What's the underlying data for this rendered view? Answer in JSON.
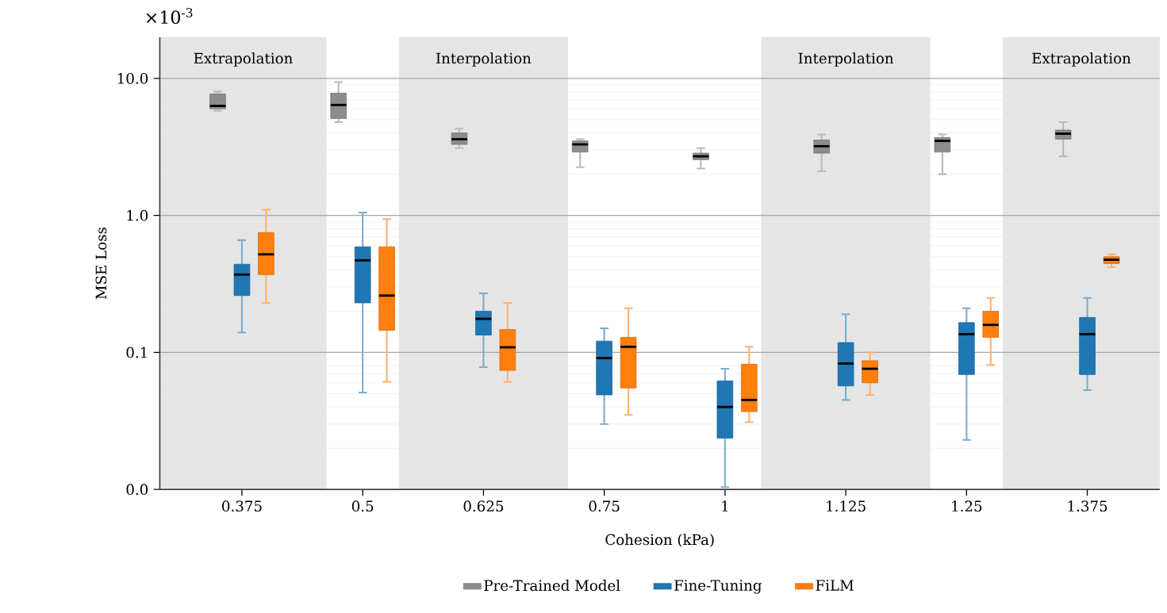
{
  "chart_data": {
    "type": "box",
    "annotations": [
      "×10$^{-3}$",
      "Extrapolation",
      "Interpolation",
      "Interpolation",
      "Extrapolation"
    ],
    "xlabel": "Cohesion (kPa)",
    "ylabel": "MSE Loss",
    "categories": [
      "0.375",
      "0.5",
      "0.625",
      "0.75",
      "1",
      "1.125",
      "1.25",
      "1.375"
    ],
    "log": "y",
    "grid": "y",
    "legend": "bottom",
    "ylim": [
      0.01,
      20
    ],
    "yticks": [
      {
        "value": 0.01,
        "label": "0.0"
      },
      0.1,
      {
        "value": 1,
        "label": "1.0"
      },
      {
        "value": 10,
        "label": "10.0"
      }
    ],
    "series": [
      {
        "name": "Pre-Trained Model",
        "color": "#8c8c8c",
        "boxes": [
          {
            "low": 5.8,
            "q1": 6.0,
            "median": 6.3,
            "q3": 7.7,
            "high": 8.0
          },
          {
            "low": 4.8,
            "q1": 5.1,
            "median": 6.4,
            "q3": 7.8,
            "high": 9.4
          },
          {
            "low": 3.1,
            "q1": 3.3,
            "median": 3.6,
            "q3": 4.0,
            "high": 4.3
          },
          {
            "low": 2.25,
            "q1": 2.9,
            "median": 3.3,
            "q3": 3.5,
            "high": 3.6
          },
          {
            "low": 2.2,
            "q1": 2.55,
            "median": 2.7,
            "q3": 2.85,
            "high": 3.1
          },
          {
            "low": 2.1,
            "q1": 2.85,
            "median": 3.2,
            "q3": 3.55,
            "high": 3.9
          },
          {
            "low": 2.0,
            "q1": 2.9,
            "median": 3.5,
            "q3": 3.7,
            "high": 3.9
          },
          {
            "low": 2.7,
            "q1": 3.6,
            "median": 3.95,
            "q3": 4.2,
            "high": 4.8
          }
        ]
      },
      {
        "name": "Fine-Tuning",
        "color": "#1f77b4",
        "boxes": [
          {
            "low": 0.14,
            "q1": 0.26,
            "median": 0.37,
            "q3": 0.44,
            "high": 0.66
          },
          {
            "low": 0.051,
            "q1": 0.23,
            "median": 0.47,
            "q3": 0.59,
            "high": 1.05
          },
          {
            "low": 0.078,
            "q1": 0.134,
            "median": 0.176,
            "q3": 0.2,
            "high": 0.27
          },
          {
            "low": 0.03,
            "q1": 0.049,
            "median": 0.091,
            "q3": 0.121,
            "high": 0.15
          },
          {
            "low": 0.0104,
            "q1": 0.0237,
            "median": 0.04,
            "q3": 0.062,
            "high": 0.076
          },
          {
            "low": 0.045,
            "q1": 0.057,
            "median": 0.083,
            "q3": 0.118,
            "high": 0.19
          },
          {
            "low": 0.023,
            "q1": 0.069,
            "median": 0.136,
            "q3": 0.165,
            "high": 0.21
          },
          {
            "low": 0.053,
            "q1": 0.069,
            "median": 0.136,
            "q3": 0.18,
            "high": 0.25
          }
        ]
      },
      {
        "name": "FiLM",
        "color": "#ff7f0e",
        "boxes": [
          {
            "low": 0.23,
            "q1": 0.37,
            "median": 0.52,
            "q3": 0.75,
            "high": 1.1
          },
          {
            "low": 0.061,
            "q1": 0.145,
            "median": 0.26,
            "q3": 0.59,
            "high": 0.94
          },
          {
            "low": 0.061,
            "q1": 0.074,
            "median": 0.109,
            "q3": 0.147,
            "high": 0.23
          },
          {
            "low": 0.035,
            "q1": 0.055,
            "median": 0.11,
            "q3": 0.129,
            "high": 0.21
          },
          {
            "low": 0.031,
            "q1": 0.037,
            "median": 0.045,
            "q3": 0.082,
            "high": 0.11
          },
          {
            "low": 0.049,
            "q1": 0.06,
            "median": 0.076,
            "q3": 0.087,
            "high": 0.1
          },
          {
            "low": 0.081,
            "q1": 0.129,
            "median": 0.159,
            "q3": 0.2,
            "high": 0.25
          },
          {
            "low": 0.42,
            "q1": 0.445,
            "median": 0.475,
            "q3": 0.5,
            "high": 0.52
          }
        ]
      }
    ]
  }
}
